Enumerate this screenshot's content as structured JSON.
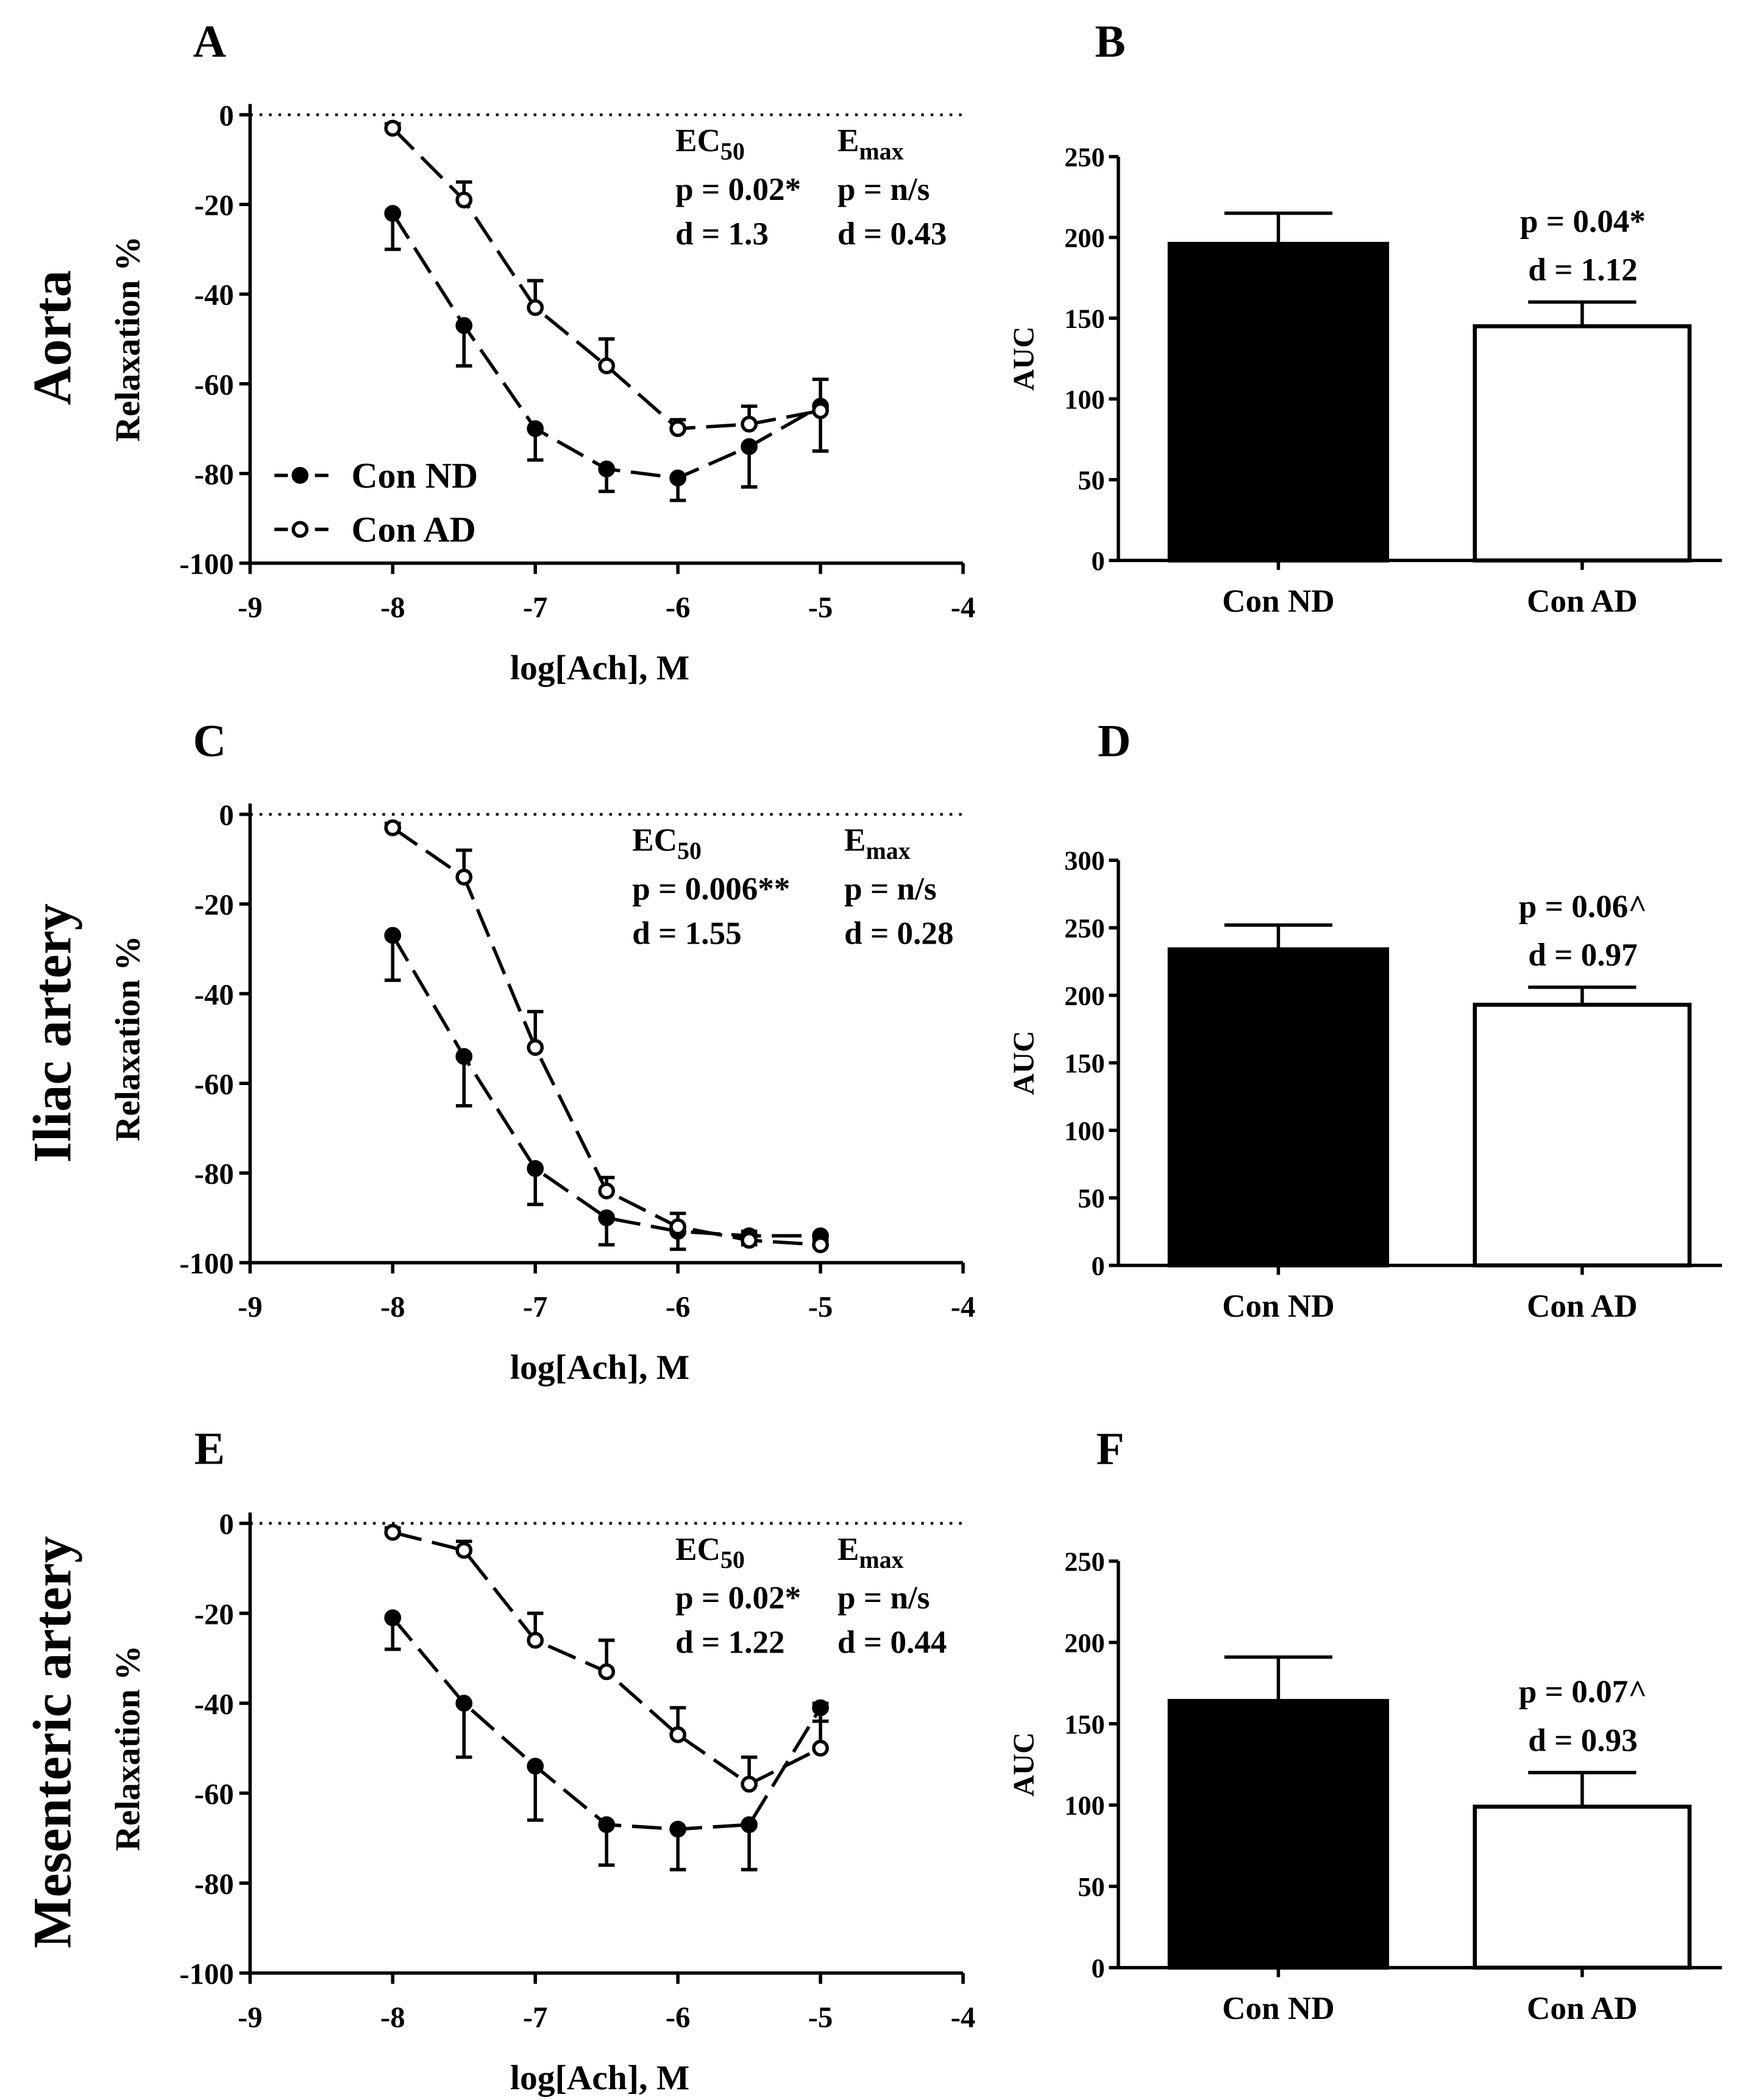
{
  "chart_data": [
    {
      "panel": "A",
      "type": "line",
      "row_label": "Aorta",
      "ylabel": "Relaxation %",
      "xlabel": "log[Ach], M",
      "xlim": [
        -9,
        -4
      ],
      "ylim": [
        -100,
        0
      ],
      "xticks": [
        -9,
        -8,
        -7,
        -6,
        -5,
        -4
      ],
      "yticks": [
        0,
        -20,
        -40,
        -60,
        -80,
        -100
      ],
      "x": [
        -8,
        -7.5,
        -7,
        -6.5,
        -6,
        -5.5,
        -5
      ],
      "series": [
        {
          "name": "Con ND",
          "marker": "filled",
          "values": [
            -22,
            -47,
            -70,
            -79,
            -81,
            -74,
            -65
          ],
          "errors": [
            8,
            9,
            7,
            5,
            5,
            9,
            10
          ]
        },
        {
          "name": "Con AD",
          "marker": "open",
          "values": [
            -3,
            -19,
            -43,
            -56,
            -70,
            -69,
            -66
          ],
          "errors": [
            1,
            4,
            6,
            6,
            2,
            4,
            7
          ]
        }
      ],
      "stats": {
        "ec50_label": "EC",
        "ec50_sub": "50",
        "emax_label": "E",
        "emax_sub": "max",
        "ec50_p": "p = 0.02*",
        "ec50_d": "d = 1.3",
        "emax_p": "p = n/s",
        "emax_d": "d = 0.43"
      },
      "legend": [
        "Con ND",
        "Con AD"
      ]
    },
    {
      "panel": "B",
      "type": "bar",
      "ylabel": "AUC",
      "ylim": [
        0,
        250
      ],
      "yticks": [
        0,
        50,
        100,
        150,
        200,
        250
      ],
      "categories": [
        "Con ND",
        "Con AD"
      ],
      "values": [
        196,
        145
      ],
      "errors": [
        19,
        15
      ],
      "annotation": [
        "p = 0.04*",
        "d = 1.12"
      ]
    },
    {
      "panel": "C",
      "type": "line",
      "row_label": "Iliac artery",
      "ylabel": "Relaxation %",
      "xlabel": "log[Ach], M",
      "xlim": [
        -9,
        -4
      ],
      "ylim": [
        -100,
        0
      ],
      "xticks": [
        -9,
        -8,
        -7,
        -6,
        -5,
        -4
      ],
      "yticks": [
        0,
        -20,
        -40,
        -60,
        -80,
        -100
      ],
      "x": [
        -8,
        -7.5,
        -7,
        -6.5,
        -6,
        -5.5,
        -5
      ],
      "series": [
        {
          "name": "Con ND",
          "marker": "filled",
          "values": [
            -27,
            -54,
            -79,
            -90,
            -93,
            -94,
            -94
          ],
          "errors": [
            10,
            11,
            8,
            6,
            4,
            2,
            1
          ]
        },
        {
          "name": "Con AD",
          "marker": "open",
          "values": [
            -3,
            -14,
            -52,
            -84,
            -92,
            -95,
            -96
          ],
          "errors": [
            1,
            6,
            8,
            3,
            3,
            2,
            2
          ]
        }
      ],
      "stats": {
        "ec50_label": "EC",
        "ec50_sub": "50",
        "emax_label": "E",
        "emax_sub": "max",
        "ec50_p": "p = 0.006**",
        "ec50_d": "d = 1.55",
        "emax_p": "p = n/s",
        "emax_d": "d = 0.28"
      }
    },
    {
      "panel": "D",
      "type": "bar",
      "ylabel": "AUC",
      "ylim": [
        0,
        300
      ],
      "yticks": [
        0,
        50,
        100,
        150,
        200,
        250,
        300
      ],
      "categories": [
        "Con ND",
        "Con AD"
      ],
      "values": [
        234,
        193
      ],
      "errors": [
        18,
        13
      ],
      "annotation": [
        "p = 0.06^",
        "d = 0.97"
      ]
    },
    {
      "panel": "E",
      "type": "line",
      "row_label": "Mesenteric artery",
      "ylabel": "Relaxation %",
      "xlabel": "log[Ach], M",
      "xlim": [
        -9,
        -4
      ],
      "ylim": [
        -100,
        0
      ],
      "xticks": [
        -9,
        -8,
        -7,
        -6,
        -5,
        -4
      ],
      "yticks": [
        0,
        -20,
        -40,
        -60,
        -80,
        -100
      ],
      "x": [
        -8,
        -7.5,
        -7,
        -6.5,
        -6,
        -5.5,
        -5
      ],
      "series": [
        {
          "name": "Con ND",
          "marker": "filled",
          "values": [
            -21,
            -40,
            -54,
            -67,
            -68,
            -67,
            -41
          ],
          "errors": [
            7,
            12,
            12,
            9,
            9,
            10,
            3
          ]
        },
        {
          "name": "Con AD",
          "marker": "open",
          "values": [
            -2,
            -6,
            -26,
            -33,
            -47,
            -58,
            -50
          ],
          "errors": [
            1,
            2,
            6,
            7,
            6,
            6,
            10
          ]
        }
      ],
      "stats": {
        "ec50_label": "EC",
        "ec50_sub": "50",
        "emax_label": "E",
        "emax_sub": "max",
        "ec50_p": "p = 0.02*",
        "ec50_d": "d = 1.22",
        "emax_p": "p = n/s",
        "emax_d": "d = 0.44"
      }
    },
    {
      "panel": "F",
      "type": "bar",
      "ylabel": "AUC",
      "ylim": [
        0,
        250
      ],
      "yticks": [
        0,
        50,
        100,
        150,
        200,
        250
      ],
      "categories": [
        "Con ND",
        "Con AD"
      ],
      "values": [
        164,
        99
      ],
      "errors": [
        27,
        21
      ],
      "annotation": [
        "p = 0.07^",
        "d = 0.93"
      ]
    }
  ]
}
